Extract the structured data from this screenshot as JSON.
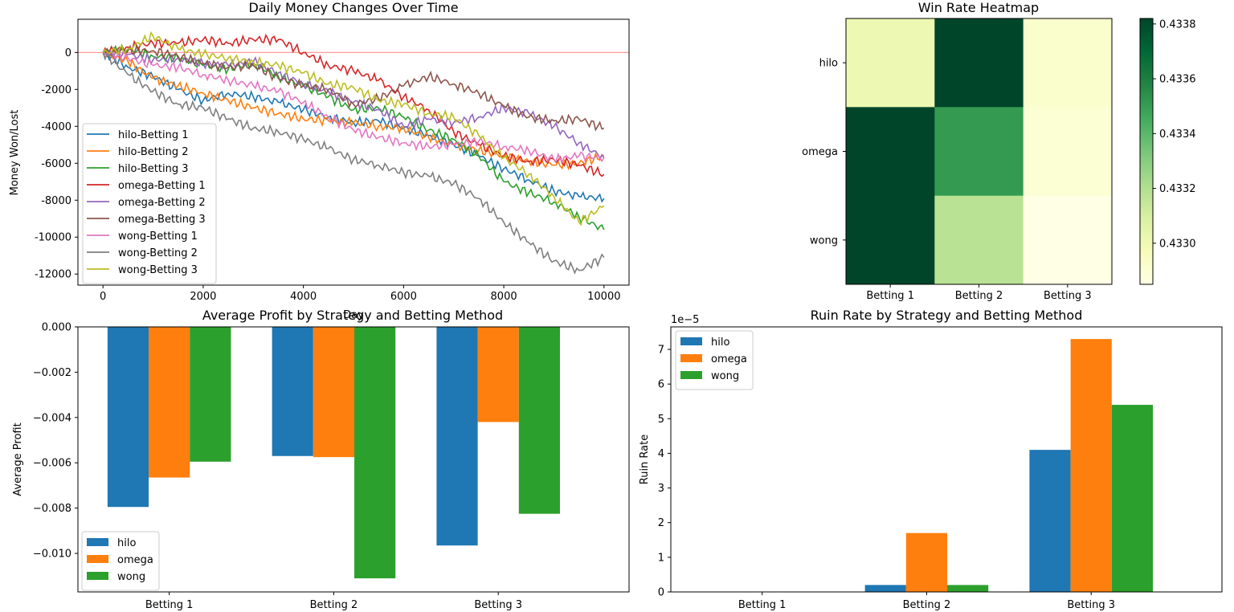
{
  "colors": {
    "blue": "#1f77b4",
    "orange": "#ff7f0e",
    "green": "#2ca02c",
    "red": "#d62728",
    "purple": "#9467bd",
    "brown": "#8c564b",
    "pink": "#e377c2",
    "gray": "#7f7f7f",
    "olive": "#bcbd22",
    "refline": "#ff9999"
  },
  "chart_data": [
    {
      "type": "line",
      "title": "Daily Money Changes Over Time",
      "xlabel": "Day",
      "ylabel": "Money Won/Lost",
      "xlim": [
        -500,
        10500
      ],
      "ylim": [
        -12600,
        1800
      ],
      "xticks": [
        0,
        2000,
        4000,
        6000,
        8000,
        10000
      ],
      "yticks": [
        0,
        -2000,
        -4000,
        -6000,
        -8000,
        -10000,
        -12000
      ],
      "reference_line_y": 0,
      "legend_position": "lower-left",
      "series": [
        {
          "name": "hilo-Betting 1",
          "color": "#1f77b4",
          "x": [
            0,
            500,
            1000,
            1500,
            2000,
            2500,
            3000,
            3500,
            4000,
            4500,
            5000,
            5500,
            6000,
            6500,
            7000,
            7500,
            8000,
            8500,
            9000,
            9500,
            10000
          ],
          "y": [
            0,
            -800,
            -1300,
            -2000,
            -2600,
            -2200,
            -2400,
            -2700,
            -3100,
            -3500,
            -3800,
            -3700,
            -4100,
            -4500,
            -5000,
            -5600,
            -6300,
            -6900,
            -7500,
            -7800,
            -7900
          ]
        },
        {
          "name": "hilo-Betting 2",
          "color": "#ff7f0e",
          "x": [
            0,
            500,
            1000,
            1500,
            2000,
            2500,
            3000,
            3500,
            4000,
            4500,
            5000,
            5500,
            6000,
            6500,
            7000,
            7500,
            8000,
            8500,
            9000,
            9500,
            10000
          ],
          "y": [
            0,
            -500,
            -1400,
            -1800,
            -2200,
            -2600,
            -3000,
            -3300,
            -3600,
            -3700,
            -3800,
            -4000,
            -4100,
            -4600,
            -5000,
            -5300,
            -5600,
            -5900,
            -6100,
            -6000,
            -5600
          ]
        },
        {
          "name": "hilo-Betting 3",
          "color": "#2ca02c",
          "x": [
            0,
            500,
            1000,
            1500,
            2000,
            2500,
            3000,
            3500,
            4000,
            4500,
            5000,
            5500,
            6000,
            6500,
            7000,
            7500,
            8000,
            8500,
            9000,
            9500,
            10000
          ],
          "y": [
            0,
            200,
            -200,
            -300,
            -700,
            -900,
            -600,
            -1300,
            -1800,
            -2400,
            -3100,
            -3000,
            -3500,
            -4200,
            -4700,
            -5600,
            -7000,
            -7600,
            -8100,
            -8900,
            -9600
          ]
        },
        {
          "name": "omega-Betting 1",
          "color": "#d62728",
          "x": [
            0,
            500,
            1000,
            1500,
            2000,
            2500,
            3000,
            3500,
            4000,
            4500,
            5000,
            5500,
            6000,
            6500,
            7000,
            7500,
            8000,
            8500,
            9000,
            9500,
            10000
          ],
          "y": [
            0,
            300,
            500,
            500,
            700,
            500,
            700,
            700,
            0,
            -700,
            -1000,
            -1500,
            -2400,
            -3100,
            -4300,
            -5000,
            -5600,
            -5900,
            -5800,
            -6100,
            -6600
          ]
        },
        {
          "name": "omega-Betting 2",
          "color": "#9467bd",
          "x": [
            0,
            500,
            1000,
            1500,
            2000,
            2500,
            3000,
            3500,
            4000,
            4500,
            5000,
            5500,
            6000,
            6500,
            7000,
            7500,
            8000,
            8500,
            9000,
            9500,
            10000
          ],
          "y": [
            0,
            -100,
            -400,
            -300,
            -600,
            -700,
            -500,
            -1100,
            -1700,
            -2100,
            -2700,
            -3100,
            -4000,
            -3600,
            -3800,
            -3500,
            -3000,
            -3300,
            -4000,
            -4900,
            -5700
          ]
        },
        {
          "name": "omega-Betting 3",
          "color": "#8c564b",
          "x": [
            0,
            500,
            1000,
            1500,
            2000,
            2500,
            3000,
            3500,
            4000,
            4500,
            5000,
            5500,
            6000,
            6500,
            7000,
            7500,
            8000,
            8500,
            9000,
            9500,
            10000
          ],
          "y": [
            0,
            100,
            100,
            -200,
            -600,
            -800,
            -700,
            -1400,
            -1800,
            -2000,
            -2800,
            -2500,
            -1800,
            -1300,
            -1700,
            -2200,
            -2900,
            -3500,
            -3700,
            -3600,
            -4100
          ]
        },
        {
          "name": "wong-Betting 1",
          "color": "#e377c2",
          "x": [
            0,
            500,
            1000,
            1500,
            2000,
            2500,
            3000,
            3500,
            4000,
            4500,
            5000,
            5500,
            6000,
            6500,
            7000,
            7500,
            8000,
            8500,
            9000,
            9500,
            10000
          ],
          "y": [
            0,
            -300,
            -700,
            -800,
            -1200,
            -1500,
            -1800,
            -2100,
            -2700,
            -3500,
            -4200,
            -4600,
            -4900,
            -5100,
            -5000,
            -4800,
            -5100,
            -5300,
            -5800,
            -5600,
            -5700
          ]
        },
        {
          "name": "wong-Betting 2",
          "color": "#7f7f7f",
          "x": [
            0,
            500,
            1000,
            1500,
            2000,
            2500,
            3000,
            3500,
            4000,
            4500,
            5000,
            5500,
            6000,
            6500,
            7000,
            7500,
            8000,
            8500,
            9000,
            9500,
            10000
          ],
          "y": [
            0,
            -1200,
            -2100,
            -2800,
            -3000,
            -3600,
            -4100,
            -4300,
            -4700,
            -5200,
            -5800,
            -6100,
            -6500,
            -6700,
            -7100,
            -7900,
            -9200,
            -10300,
            -11300,
            -11800,
            -11100
          ]
        },
        {
          "name": "wong-Betting 3",
          "color": "#bcbd22",
          "x": [
            0,
            500,
            1000,
            1500,
            2000,
            2500,
            3000,
            3500,
            4000,
            4500,
            5000,
            5500,
            6000,
            6500,
            7000,
            7500,
            8000,
            8500,
            9000,
            9500,
            10000
          ],
          "y": [
            0,
            200,
            900,
            200,
            -100,
            -300,
            -500,
            -700,
            -1100,
            -1700,
            -1900,
            -2600,
            -2800,
            -3300,
            -3500,
            -4500,
            -5700,
            -6600,
            -7800,
            -9200,
            -8300
          ]
        }
      ]
    },
    {
      "type": "heatmap",
      "title": "Win Rate Heatmap",
      "rows": [
        "hilo",
        "omega",
        "wong"
      ],
      "columns": [
        "Betting 1",
        "Betting 2",
        "Betting 3"
      ],
      "values": [
        [
          0.43301,
          0.43382,
          0.43292
        ],
        [
          0.43382,
          0.43351,
          0.4329
        ],
        [
          0.43382,
          0.43318,
          0.43285
        ]
      ],
      "colorbar_range": [
        0.43285,
        0.43382
      ],
      "colorbar_ticks": [
        0.433,
        0.4332,
        0.4334,
        0.4336,
        0.4338
      ],
      "colorbar_tick_labels": [
        "0.4330",
        "0.4332",
        "0.4334",
        "0.4336",
        "0.4338"
      ],
      "colormap": [
        "#ffffe5",
        "#f7fcb9",
        "#d9f0a3",
        "#addd8e",
        "#78c679",
        "#41ab5d",
        "#238443",
        "#006837",
        "#004529"
      ]
    },
    {
      "type": "bar",
      "title": "Average Profit by Strategy and Betting Method",
      "xlabel": "",
      "ylabel": "Average Profit",
      "categories": [
        "Betting 1",
        "Betting 2",
        "Betting 3"
      ],
      "ylim": [
        -0.0117,
        0
      ],
      "yticks": [
        0.0,
        -0.002,
        -0.004,
        -0.006,
        -0.008,
        -0.01
      ],
      "ytick_labels": [
        "0.000",
        "−0.002",
        "−0.004",
        "−0.006",
        "−0.008",
        "−0.010"
      ],
      "legend_position": "lower-left",
      "series": [
        {
          "name": "hilo",
          "color": "#1f77b4",
          "values": [
            -0.00795,
            -0.0057,
            -0.00965
          ]
        },
        {
          "name": "omega",
          "color": "#ff7f0e",
          "values": [
            -0.00665,
            -0.00575,
            -0.0042
          ]
        },
        {
          "name": "wong",
          "color": "#2ca02c",
          "values": [
            -0.00595,
            -0.0111,
            -0.00825
          ]
        }
      ]
    },
    {
      "type": "bar",
      "title": "Ruin Rate by Strategy and Betting Method",
      "xlabel": "",
      "ylabel": "Ruin Rate",
      "scale_label": "1e−5",
      "categories": [
        "Betting 1",
        "Betting 2",
        "Betting 3"
      ],
      "ylim": [
        0,
        7.65
      ],
      "yticks": [
        0,
        1,
        2,
        3,
        4,
        5,
        6,
        7
      ],
      "ytick_labels": [
        "0",
        "1",
        "2",
        "3",
        "4",
        "5",
        "6",
        "7"
      ],
      "legend_position": "upper-left",
      "series": [
        {
          "name": "hilo",
          "color": "#1f77b4",
          "values": [
            0,
            0.2,
            4.1
          ]
        },
        {
          "name": "omega",
          "color": "#ff7f0e",
          "values": [
            0,
            1.7,
            7.3
          ]
        },
        {
          "name": "wong",
          "color": "#2ca02c",
          "values": [
            0,
            0.2,
            5.4
          ]
        }
      ]
    }
  ]
}
